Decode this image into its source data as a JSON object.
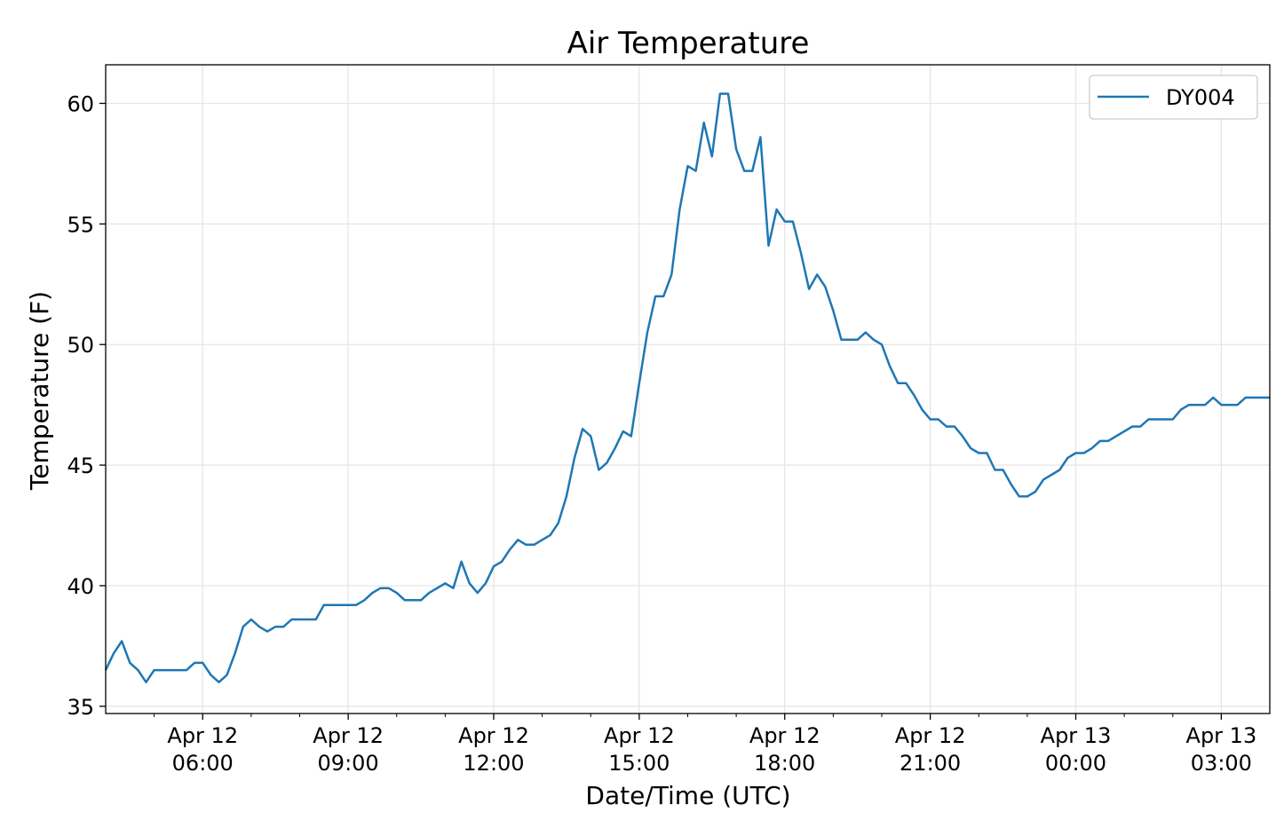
{
  "chart_data": {
    "type": "line",
    "title": "Air Temperature",
    "xlabel": "Date/Time (UTC)",
    "ylabel": "Temperature (F)",
    "xlim": [
      "2023-04-12T04:00",
      "2023-04-13T04:00"
    ],
    "ylim": [
      34.7,
      61.6
    ],
    "yticks": [
      35,
      40,
      45,
      50,
      55,
      60
    ],
    "xticks": [
      {
        "t": "2023-04-12T06:00",
        "line1": "Apr 12",
        "line2": "06:00"
      },
      {
        "t": "2023-04-12T09:00",
        "line1": "Apr 12",
        "line2": "09:00"
      },
      {
        "t": "2023-04-12T12:00",
        "line1": "Apr 12",
        "line2": "12:00"
      },
      {
        "t": "2023-04-12T15:00",
        "line1": "Apr 12",
        "line2": "15:00"
      },
      {
        "t": "2023-04-12T18:00",
        "line1": "Apr 12",
        "line2": "18:00"
      },
      {
        "t": "2023-04-12T21:00",
        "line1": "Apr 12",
        "line2": "21:00"
      },
      {
        "t": "2023-04-13T00:00",
        "line1": "Apr 13",
        "line2": "00:00"
      },
      {
        "t": "2023-04-13T03:00",
        "line1": "Apr 13",
        "line2": "03:00"
      }
    ],
    "minor_xticks": [
      "2023-04-12T05:00",
      "2023-04-12T07:00",
      "2023-04-12T08:00",
      "2023-04-12T10:00",
      "2023-04-12T11:00",
      "2023-04-12T13:00",
      "2023-04-12T14:00",
      "2023-04-12T16:00",
      "2023-04-12T17:00",
      "2023-04-12T19:00",
      "2023-04-12T20:00",
      "2023-04-12T22:00",
      "2023-04-12T23:00",
      "2023-04-13T01:00",
      "2023-04-13T02:00"
    ],
    "grid": true,
    "legend_position": "top-right",
    "series": [
      {
        "name": "DY004",
        "color": "#1f77b4",
        "x": [
          "2023-04-12T04:00",
          "2023-04-12T04:10",
          "2023-04-12T04:20",
          "2023-04-12T04:30",
          "2023-04-12T04:40",
          "2023-04-12T04:50",
          "2023-04-12T05:00",
          "2023-04-12T05:10",
          "2023-04-12T05:20",
          "2023-04-12T05:30",
          "2023-04-12T05:40",
          "2023-04-12T05:50",
          "2023-04-12T06:00",
          "2023-04-12T06:10",
          "2023-04-12T06:20",
          "2023-04-12T06:30",
          "2023-04-12T06:40",
          "2023-04-12T06:50",
          "2023-04-12T07:00",
          "2023-04-12T07:10",
          "2023-04-12T07:20",
          "2023-04-12T07:30",
          "2023-04-12T07:40",
          "2023-04-12T07:50",
          "2023-04-12T08:00",
          "2023-04-12T08:10",
          "2023-04-12T08:20",
          "2023-04-12T08:30",
          "2023-04-12T08:40",
          "2023-04-12T08:50",
          "2023-04-12T09:00",
          "2023-04-12T09:10",
          "2023-04-12T09:20",
          "2023-04-12T09:30",
          "2023-04-12T09:40",
          "2023-04-12T09:50",
          "2023-04-12T10:00",
          "2023-04-12T10:10",
          "2023-04-12T10:20",
          "2023-04-12T10:30",
          "2023-04-12T10:40",
          "2023-04-12T10:50",
          "2023-04-12T11:00",
          "2023-04-12T11:10",
          "2023-04-12T11:20",
          "2023-04-12T11:30",
          "2023-04-12T11:40",
          "2023-04-12T11:50",
          "2023-04-12T12:00",
          "2023-04-12T12:10",
          "2023-04-12T12:20",
          "2023-04-12T12:30",
          "2023-04-12T12:40",
          "2023-04-12T12:50",
          "2023-04-12T13:00",
          "2023-04-12T13:10",
          "2023-04-12T13:20",
          "2023-04-12T13:30",
          "2023-04-12T13:40",
          "2023-04-12T13:50",
          "2023-04-12T14:00",
          "2023-04-12T14:10",
          "2023-04-12T14:20",
          "2023-04-12T14:30",
          "2023-04-12T14:40",
          "2023-04-12T14:50",
          "2023-04-12T15:00",
          "2023-04-12T15:10",
          "2023-04-12T15:20",
          "2023-04-12T15:30",
          "2023-04-12T15:40",
          "2023-04-12T15:50",
          "2023-04-12T16:00",
          "2023-04-12T16:10",
          "2023-04-12T16:20",
          "2023-04-12T16:30",
          "2023-04-12T16:40",
          "2023-04-12T16:50",
          "2023-04-12T17:00",
          "2023-04-12T17:10",
          "2023-04-12T17:20",
          "2023-04-12T17:30",
          "2023-04-12T17:40",
          "2023-04-12T17:50",
          "2023-04-12T18:00",
          "2023-04-12T18:10",
          "2023-04-12T18:20",
          "2023-04-12T18:30",
          "2023-04-12T18:40",
          "2023-04-12T18:50",
          "2023-04-12T19:00",
          "2023-04-12T19:10",
          "2023-04-12T19:20",
          "2023-04-12T19:30",
          "2023-04-12T19:40",
          "2023-04-12T19:50",
          "2023-04-12T20:00",
          "2023-04-12T20:10",
          "2023-04-12T20:20",
          "2023-04-12T20:30",
          "2023-04-12T20:40",
          "2023-04-12T20:50",
          "2023-04-12T21:00",
          "2023-04-12T21:10",
          "2023-04-12T21:20",
          "2023-04-12T21:30",
          "2023-04-12T21:40",
          "2023-04-12T21:50",
          "2023-04-12T22:00",
          "2023-04-12T22:10",
          "2023-04-12T22:20",
          "2023-04-12T22:30",
          "2023-04-12T22:40",
          "2023-04-12T22:50",
          "2023-04-12T23:00",
          "2023-04-12T23:10",
          "2023-04-12T23:20",
          "2023-04-12T23:30",
          "2023-04-12T23:40",
          "2023-04-12T23:50",
          "2023-04-13T00:00",
          "2023-04-13T00:10",
          "2023-04-13T00:20",
          "2023-04-13T00:30",
          "2023-04-13T00:40",
          "2023-04-13T00:50",
          "2023-04-13T01:00",
          "2023-04-13T01:10",
          "2023-04-13T01:20",
          "2023-04-13T01:30",
          "2023-04-13T01:40",
          "2023-04-13T01:50",
          "2023-04-13T02:00",
          "2023-04-13T02:10",
          "2023-04-13T02:20",
          "2023-04-13T02:30",
          "2023-04-13T02:40",
          "2023-04-13T02:50",
          "2023-04-13T03:00",
          "2023-04-13T03:10",
          "2023-04-13T03:20",
          "2023-04-13T03:30",
          "2023-04-13T03:40",
          "2023-04-13T03:50",
          "2023-04-13T04:00"
        ],
        "y": [
          36.5,
          37.2,
          37.7,
          36.8,
          36.5,
          36.0,
          36.5,
          36.5,
          36.5,
          36.5,
          36.5,
          36.8,
          36.8,
          36.3,
          36.0,
          36.3,
          37.2,
          38.3,
          38.6,
          38.3,
          38.1,
          38.3,
          38.3,
          38.6,
          38.6,
          38.6,
          38.6,
          39.2,
          39.2,
          39.2,
          39.2,
          39.2,
          39.4,
          39.7,
          39.9,
          39.9,
          39.7,
          39.4,
          39.4,
          39.4,
          39.7,
          39.9,
          40.1,
          39.9,
          41.0,
          40.1,
          39.7,
          40.1,
          40.8,
          41.0,
          41.5,
          41.9,
          41.7,
          41.7,
          41.9,
          42.1,
          42.6,
          43.7,
          45.3,
          46.5,
          46.2,
          44.8,
          45.1,
          45.7,
          46.4,
          46.2,
          48.4,
          50.5,
          52.0,
          52.0,
          52.9,
          55.6,
          57.4,
          57.2,
          59.2,
          57.8,
          60.4,
          60.4,
          58.1,
          57.2,
          57.2,
          58.6,
          54.1,
          55.6,
          55.1,
          55.1,
          53.8,
          52.3,
          52.9,
          52.4,
          51.4,
          50.2,
          50.2,
          50.2,
          50.5,
          50.2,
          50.0,
          49.1,
          48.4,
          48.4,
          47.9,
          47.3,
          46.9,
          46.9,
          46.6,
          46.6,
          46.2,
          45.7,
          45.5,
          45.5,
          44.8,
          44.8,
          44.2,
          43.7,
          43.7,
          43.9,
          44.4,
          44.6,
          44.8,
          45.3,
          45.5,
          45.5,
          45.7,
          46.0,
          46.0,
          46.2,
          46.4,
          46.6,
          46.6,
          46.9,
          46.9,
          46.9,
          46.9,
          47.3,
          47.5,
          47.5,
          47.5,
          47.8,
          47.5,
          47.5,
          47.5,
          47.8,
          47.8,
          47.8,
          47.8
        ]
      }
    ]
  }
}
